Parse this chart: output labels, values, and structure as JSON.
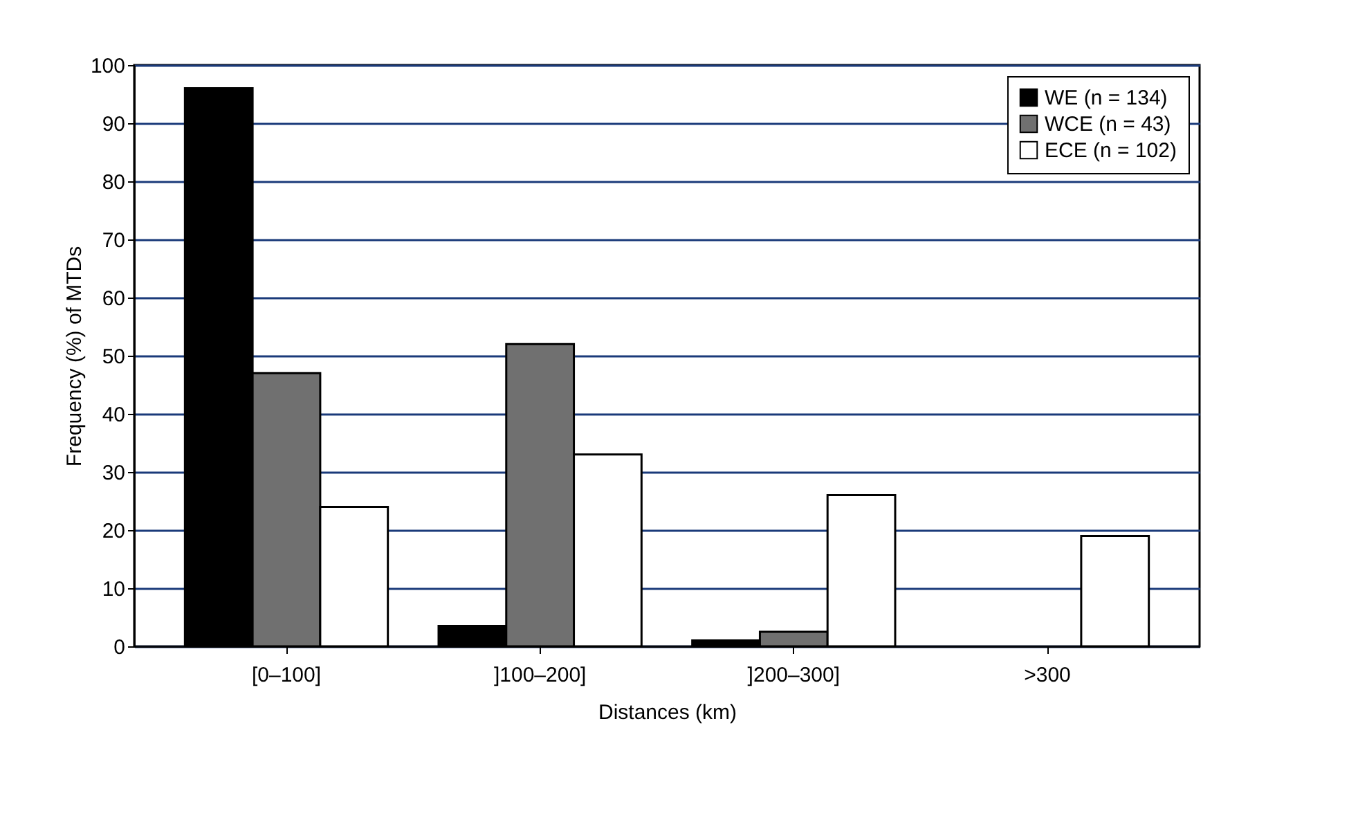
{
  "chart_data": {
    "type": "bar",
    "xlabel": "Distances (km)",
    "ylabel": "Frequency (%) of MTDs",
    "categories": [
      "[0–100]",
      "]100–200]",
      "]200–300]",
      ">300"
    ],
    "series": [
      {
        "name": "WE (n = 134)",
        "color": "#000000",
        "values": [
          96,
          3.5,
          1,
          null
        ]
      },
      {
        "name": "WCE (n = 43)",
        "color": "#707070",
        "values": [
          47,
          52,
          2.5,
          null
        ]
      },
      {
        "name": "ECE (n = 102)",
        "color": "#ffffff",
        "values": [
          24,
          33,
          26,
          19
        ]
      }
    ],
    "ylim": [
      0,
      100
    ],
    "yticks": [
      0,
      10,
      20,
      30,
      40,
      50,
      60,
      70,
      80,
      90,
      100
    ],
    "grid": "y",
    "legend": "top right"
  }
}
